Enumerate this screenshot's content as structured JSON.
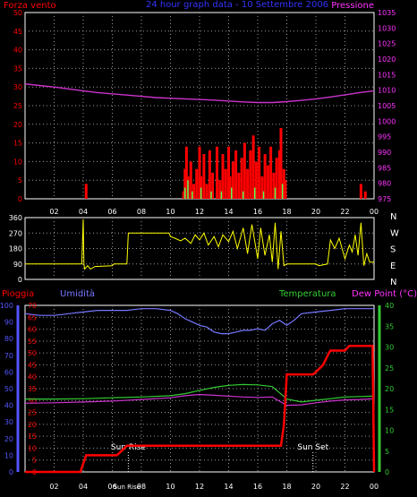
{
  "header": {
    "left_title": "Forza vento",
    "center_title": "24 hour graph data - 10 Settembre 2006",
    "right_title": "Pressione"
  },
  "colors": {
    "background": "#000000",
    "frame": "#ffffff",
    "grid": "#9a9a9a",
    "wind": "#ff0000",
    "gust": "#ffff00",
    "gust_inner": "#55ff55",
    "pressure": "#cc33cc",
    "direction": "#ffff00",
    "rain": "#ff0000",
    "humidity": "#7777ff",
    "temperature": "#33cc33",
    "dewpoint": "#cc33cc",
    "temp_axis": "#33cc33",
    "left_axis_red": "#ff0000",
    "right_axis_magenta": "#ff33ff",
    "hum_axis": "#5555ff"
  },
  "chart_data": [
    {
      "type": "bar",
      "name": "wind",
      "x_tick_labels": [
        "02",
        "04",
        "06",
        "08",
        "10",
        "12",
        "14",
        "16",
        "18",
        "20",
        "22",
        "00"
      ],
      "x_tick_hours": [
        2,
        4,
        6,
        8,
        10,
        12,
        14,
        16,
        18,
        20,
        22,
        24
      ],
      "xlim": [
        0,
        24
      ],
      "left_axis": {
        "ticks": [
          0,
          5,
          10,
          15,
          20,
          25,
          30,
          35,
          40,
          45,
          50
        ],
        "ylim": [
          0,
          50
        ]
      },
      "right_axis": {
        "ticks": [
          975,
          980,
          985,
          990,
          995,
          1000,
          1005,
          1010,
          1015,
          1020,
          1025,
          1030,
          1035
        ],
        "ylim": [
          975,
          1035
        ]
      },
      "series": [
        {
          "name": "Forza vento",
          "axis": "left",
          "spikes": [
            [
              4.2,
              4
            ],
            [
              10.9,
              2
            ],
            [
              11.0,
              8
            ],
            [
              11.1,
              14
            ],
            [
              11.2,
              6
            ],
            [
              11.4,
              10
            ],
            [
              11.6,
              4
            ],
            [
              11.8,
              8
            ],
            [
              12.0,
              14
            ],
            [
              12.1,
              6
            ],
            [
              12.3,
              12
            ],
            [
              12.5,
              4
            ],
            [
              12.7,
              13
            ],
            [
              12.9,
              7
            ],
            [
              13.2,
              14
            ],
            [
              13.4,
              5
            ],
            [
              13.6,
              12
            ],
            [
              13.8,
              8
            ],
            [
              14.0,
              14
            ],
            [
              14.1,
              6
            ],
            [
              14.3,
              10
            ],
            [
              14.5,
              13
            ],
            [
              14.7,
              7
            ],
            [
              14.9,
              11
            ],
            [
              15.1,
              15
            ],
            [
              15.3,
              8
            ],
            [
              15.5,
              13
            ],
            [
              15.7,
              17
            ],
            [
              15.9,
              10
            ],
            [
              16.1,
              14
            ],
            [
              16.3,
              6
            ],
            [
              16.5,
              12
            ],
            [
              16.7,
              9
            ],
            [
              16.9,
              14
            ],
            [
              17.1,
              7
            ],
            [
              17.3,
              11
            ],
            [
              17.5,
              13
            ],
            [
              17.6,
              19
            ],
            [
              17.8,
              8
            ],
            [
              17.9,
              5
            ],
            [
              23.1,
              4
            ],
            [
              23.4,
              2
            ]
          ]
        },
        {
          "name": "gust",
          "axis": "left",
          "spikes": [
            [
              11.0,
              3
            ],
            [
              11.2,
              5
            ],
            [
              11.5,
              2
            ],
            [
              12.1,
              3
            ],
            [
              12.8,
              2
            ],
            [
              13.5,
              2
            ],
            [
              14.2,
              3
            ],
            [
              15.0,
              2
            ],
            [
              15.8,
              3
            ],
            [
              16.4,
              2
            ],
            [
              17.2,
              3
            ],
            [
              17.7,
              4
            ]
          ]
        },
        {
          "name": "Pressione",
          "axis": "right",
          "points": [
            [
              0,
              1012
            ],
            [
              1,
              1011.5
            ],
            [
              2,
              1011
            ],
            [
              3,
              1010.4
            ],
            [
              4,
              1009.8
            ],
            [
              5,
              1009.2
            ],
            [
              6,
              1008.8
            ],
            [
              7,
              1008.4
            ],
            [
              8,
              1008
            ],
            [
              9,
              1007.6
            ],
            [
              10,
              1007.4
            ],
            [
              11,
              1007.2
            ],
            [
              12,
              1007
            ],
            [
              13,
              1006.8
            ],
            [
              14,
              1006.5
            ],
            [
              15,
              1006.2
            ],
            [
              16,
              1006
            ],
            [
              17,
              1006
            ],
            [
              18,
              1006.3
            ],
            [
              19,
              1006.7
            ],
            [
              20,
              1007.2
            ],
            [
              21,
              1007.8
            ],
            [
              22,
              1008.5
            ],
            [
              23,
              1009.2
            ],
            [
              24,
              1009.8
            ]
          ]
        }
      ]
    },
    {
      "type": "line",
      "name": "direction",
      "x_tick_hours": [
        2,
        4,
        6,
        8,
        10,
        12,
        14,
        16,
        18,
        20,
        22,
        24
      ],
      "xlim": [
        0,
        24
      ],
      "left_axis": {
        "ticks": [
          0,
          90,
          180,
          270,
          360
        ],
        "ylim": [
          0,
          360
        ]
      },
      "right_labels": [
        "N",
        "W",
        "S",
        "E",
        "N"
      ],
      "series": [
        {
          "name": "direction",
          "points": [
            [
              0,
              90
            ],
            [
              3.9,
              90
            ],
            [
              4.0,
              350
            ],
            [
              4.05,
              90
            ],
            [
              4.1,
              60
            ],
            [
              4.3,
              80
            ],
            [
              4.5,
              60
            ],
            [
              4.8,
              75
            ],
            [
              6.0,
              80
            ],
            [
              6.1,
              90
            ],
            [
              7.0,
              90
            ],
            [
              7.1,
              270
            ],
            [
              9.9,
              270
            ],
            [
              10.0,
              250
            ],
            [
              10.3,
              240
            ],
            [
              10.7,
              225
            ],
            [
              11.0,
              240
            ],
            [
              11.4,
              210
            ],
            [
              11.7,
              260
            ],
            [
              12.0,
              230
            ],
            [
              12.3,
              270
            ],
            [
              12.6,
              200
            ],
            [
              13.0,
              250
            ],
            [
              13.3,
              190
            ],
            [
              13.6,
              260
            ],
            [
              14.0,
              220
            ],
            [
              14.3,
              280
            ],
            [
              14.6,
              180
            ],
            [
              15.0,
              300
            ],
            [
              15.3,
              150
            ],
            [
              15.6,
              320
            ],
            [
              16.0,
              120
            ],
            [
              16.2,
              300
            ],
            [
              16.5,
              140
            ],
            [
              16.8,
              260
            ],
            [
              17.0,
              100
            ],
            [
              17.2,
              330
            ],
            [
              17.4,
              60
            ],
            [
              17.6,
              280
            ],
            [
              17.8,
              80
            ],
            [
              18.0,
              90
            ],
            [
              20.0,
              90
            ],
            [
              20.2,
              80
            ],
            [
              20.8,
              90
            ],
            [
              21.0,
              230
            ],
            [
              21.3,
              180
            ],
            [
              21.6,
              240
            ],
            [
              22.0,
              120
            ],
            [
              22.3,
              200
            ],
            [
              22.5,
              160
            ],
            [
              22.7,
              260
            ],
            [
              22.9,
              140
            ],
            [
              23.1,
              330
            ],
            [
              23.3,
              80
            ],
            [
              23.5,
              150
            ],
            [
              23.7,
              100
            ],
            [
              24,
              100
            ]
          ]
        }
      ]
    },
    {
      "type": "line",
      "name": "rain-humidity-temperature",
      "x_tick_labels": [
        "02",
        "04",
        "06",
        "Sun Rise",
        "08",
        "10",
        "12",
        "14",
        "16",
        "18",
        "20",
        "22",
        "00"
      ],
      "x_tick_hours": [
        2,
        4,
        6,
        7,
        8,
        10,
        12,
        14,
        16,
        18,
        20,
        22,
        24
      ],
      "xlim": [
        0,
        24
      ],
      "legend": [
        "Pioggia",
        "Umidità",
        "Temperatura",
        "Dew Point (°C)"
      ],
      "left_axis_rain": {
        "ticks": [
          0,
          5,
          10,
          15,
          20,
          25,
          30,
          35,
          40,
          45,
          50,
          55,
          60,
          65,
          70
        ],
        "ylim": [
          0,
          70
        ]
      },
      "left_axis_humidity": {
        "ticks": [
          0,
          10,
          20,
          30,
          40,
          50,
          60,
          70,
          80,
          90,
          100
        ],
        "ylim": [
          0,
          100
        ]
      },
      "right_axis_temperature": {
        "ticks": [
          0,
          5,
          10,
          15,
          20,
          25,
          30,
          35,
          40
        ],
        "ylim": [
          0,
          40
        ]
      },
      "annotations": [
        {
          "text": "Sun Rise",
          "hour": 7.1
        },
        {
          "text": "Sun Set",
          "hour": 19.8
        }
      ],
      "series": [
        {
          "name": "Pioggia",
          "axis": "rain",
          "points": [
            [
              0,
              0
            ],
            [
              3.8,
              0
            ],
            [
              4.2,
              7
            ],
            [
              6.3,
              7
            ],
            [
              6.5,
              8
            ],
            [
              7.0,
              11
            ],
            [
              17.6,
              11
            ],
            [
              17.8,
              20
            ],
            [
              18.0,
              41
            ],
            [
              19.8,
              41
            ],
            [
              20.0,
              42
            ],
            [
              20.5,
              45
            ],
            [
              20.9,
              50
            ],
            [
              21.0,
              51
            ],
            [
              22.0,
              51
            ],
            [
              22.3,
              53
            ],
            [
              23.9,
              53
            ],
            [
              24,
              0
            ]
          ]
        },
        {
          "name": "Umidità",
          "axis": "humidity",
          "points": [
            [
              0,
              95
            ],
            [
              1,
              94
            ],
            [
              2,
              94
            ],
            [
              3,
              95
            ],
            [
              4,
              96
            ],
            [
              5,
              97
            ],
            [
              6,
              97
            ],
            [
              7,
              97
            ],
            [
              8,
              98
            ],
            [
              9,
              98
            ],
            [
              10,
              97
            ],
            [
              10.5,
              95
            ],
            [
              11,
              92
            ],
            [
              11.5,
              90
            ],
            [
              12,
              88
            ],
            [
              12.5,
              87
            ],
            [
              13,
              84
            ],
            [
              13.5,
              83
            ],
            [
              14,
              83
            ],
            [
              14.5,
              84
            ],
            [
              15,
              85
            ],
            [
              15.5,
              85
            ],
            [
              16,
              86
            ],
            [
              16.5,
              85
            ],
            [
              17,
              89
            ],
            [
              17.5,
              91
            ],
            [
              18,
              88
            ],
            [
              18.5,
              91
            ],
            [
              19,
              95
            ],
            [
              20,
              96
            ],
            [
              21,
              97
            ],
            [
              22,
              98
            ],
            [
              23,
              98
            ],
            [
              24,
              98
            ]
          ]
        },
        {
          "name": "Temperatura",
          "axis": "temperature",
          "points": [
            [
              0,
              17.5
            ],
            [
              2,
              17.5
            ],
            [
              4,
              17.6
            ],
            [
              6,
              17.8
            ],
            [
              8,
              18
            ],
            [
              10,
              18.3
            ],
            [
              11,
              18.8
            ],
            [
              12,
              19.6
            ],
            [
              13,
              20.3
            ],
            [
              14,
              20.8
            ],
            [
              15,
              21
            ],
            [
              16,
              20.9
            ],
            [
              17,
              20.5
            ],
            [
              18,
              17.5
            ],
            [
              19,
              16.8
            ],
            [
              20,
              17.2
            ],
            [
              21,
              17.6
            ],
            [
              22,
              18
            ],
            [
              23,
              18.1
            ],
            [
              24,
              18.2
            ]
          ]
        },
        {
          "name": "Dew Point (°C)",
          "axis": "temperature",
          "points": [
            [
              0,
              16.5
            ],
            [
              2,
              16.6
            ],
            [
              4,
              16.8
            ],
            [
              6,
              17
            ],
            [
              8,
              17.4
            ],
            [
              10,
              17.8
            ],
            [
              11,
              18.3
            ],
            [
              12,
              18.6
            ],
            [
              13,
              18.4
            ],
            [
              14,
              18.2
            ],
            [
              15,
              18
            ],
            [
              16,
              17.9
            ],
            [
              17,
              18
            ],
            [
              18,
              16
            ],
            [
              19,
              16.1
            ],
            [
              20,
              16.6
            ],
            [
              21,
              17
            ],
            [
              22,
              17.3
            ],
            [
              23,
              17.4
            ],
            [
              24,
              17.6
            ]
          ]
        }
      ]
    }
  ]
}
